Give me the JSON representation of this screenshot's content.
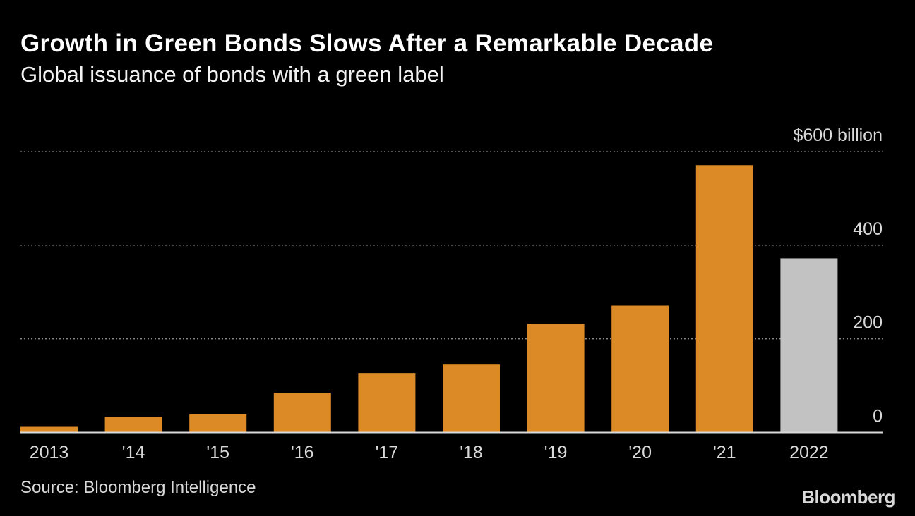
{
  "title": "Growth in Green Bonds Slows After a Remarkable Decade",
  "subtitle": "Global issuance of bonds with a green label",
  "source": "Source: Bloomberg Intelligence",
  "logo": "Bloomberg",
  "chart_data": {
    "type": "bar",
    "categories": [
      "2013",
      "'14",
      "'15",
      "'16",
      "'17",
      "'18",
      "'19",
      "'20",
      "'21",
      "2022"
    ],
    "values": [
      12,
      33,
      39,
      85,
      127,
      145,
      232,
      271,
      571,
      372
    ],
    "colors": [
      "#dc8a26",
      "#dc8a26",
      "#dc8a26",
      "#dc8a26",
      "#dc8a26",
      "#dc8a26",
      "#dc8a26",
      "#dc8a26",
      "#dc8a26",
      "#c2c2c2"
    ],
    "ylim": [
      0,
      600
    ],
    "yticks": [
      0,
      200,
      400,
      600
    ],
    "ytick_labels": [
      "0",
      "200",
      "400",
      "$600 billion"
    ],
    "grid": true,
    "axis_position": "right"
  }
}
